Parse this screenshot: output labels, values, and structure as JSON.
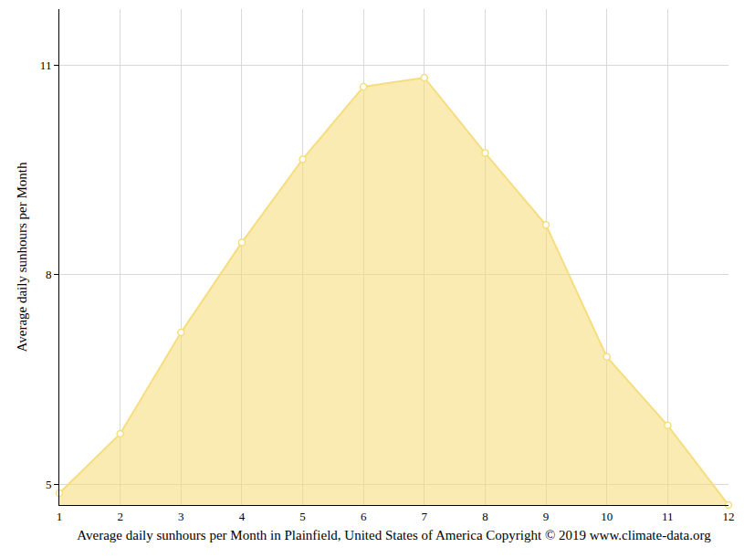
{
  "chart_data": {
    "type": "area",
    "x_label": "Average daily sunhours per Month in Plainfield, United States of America Copyright © 2019 www.climate-data.org",
    "y_label": "Average daily sunhours per Month",
    "x": [
      1,
      2,
      3,
      4,
      5,
      6,
      7,
      8,
      9,
      10,
      11,
      12
    ],
    "values": [
      4.87,
      5.72,
      7.17,
      8.46,
      9.65,
      10.69,
      10.82,
      9.74,
      8.71,
      6.82,
      5.84,
      4.7
    ],
    "color": "#f6dd7f",
    "marker": "circle",
    "xlim": [
      1,
      12
    ],
    "xticks": [
      1,
      2,
      3,
      4,
      5,
      6,
      7,
      8,
      9,
      10,
      11,
      12
    ],
    "ylim": [
      4.7,
      11.8
    ],
    "yticks": [
      5,
      8,
      11
    ],
    "grid": true
  }
}
